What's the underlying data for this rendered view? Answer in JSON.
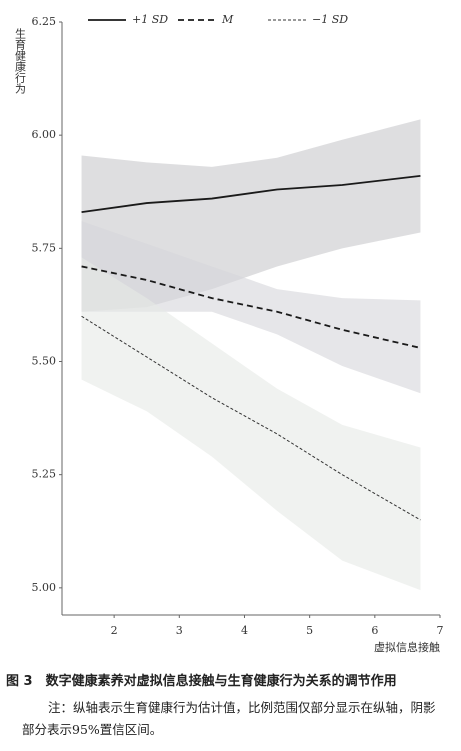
{
  "chart_data": {
    "type": "line",
    "ylabel": "生育健康行为",
    "xlabel": "虚拟信息接触",
    "x": [
      1.5,
      2.5,
      3.5,
      4.5,
      5.5,
      6.7
    ],
    "series": [
      {
        "name": "+1 SD",
        "color": "#1a1a1a",
        "dash": "solid",
        "band_color": "#c8c8cc",
        "values": [
          5.83,
          5.85,
          5.86,
          5.88,
          5.89,
          5.91
        ],
        "lower": [
          5.61,
          5.62,
          5.66,
          5.71,
          5.75,
          5.785
        ],
        "upper": [
          5.955,
          5.94,
          5.93,
          5.95,
          5.99,
          6.035
        ]
      },
      {
        "name": "M",
        "color": "#1a1a1a",
        "dash": "dashed",
        "band_color": "#d6d6da",
        "values": [
          5.71,
          5.68,
          5.64,
          5.61,
          5.57,
          5.53
        ],
        "lower": [
          5.61,
          5.61,
          5.61,
          5.56,
          5.49,
          5.43
        ],
        "upper": [
          5.81,
          5.76,
          5.71,
          5.66,
          5.64,
          5.635
        ]
      },
      {
        "name": "−1 SD",
        "color": "#333333",
        "dash": "dotted",
        "band_color": "#e6e9e6",
        "values": [
          5.6,
          5.51,
          5.42,
          5.34,
          5.25,
          5.15
        ],
        "lower": [
          5.46,
          5.39,
          5.29,
          5.17,
          5.06,
          4.995
        ],
        "upper": [
          5.73,
          5.64,
          5.54,
          5.44,
          5.36,
          5.31
        ]
      }
    ],
    "xlim": [
      1.2,
      7.0
    ],
    "xticks": [
      2,
      3,
      4,
      5,
      6,
      7
    ],
    "ylim": [
      4.94,
      6.25
    ],
    "yticks": [
      {
        "value": 5,
        "label": "5.00"
      },
      5.25,
      {
        "value": 5.5,
        "label": "5.50"
      },
      {
        "value": 5.75,
        "label": "5.75"
      },
      {
        "value": 6,
        "label": "6.00"
      },
      6.25
    ]
  },
  "caption": "图 3　数字健康素养对虚拟信息接触与生育健康行为关系的调节作用",
  "note": "注：纵轴表示生育健康行为估计值，比例范围仅部分显示在纵轴，阴影部分表示95%置信区间。"
}
